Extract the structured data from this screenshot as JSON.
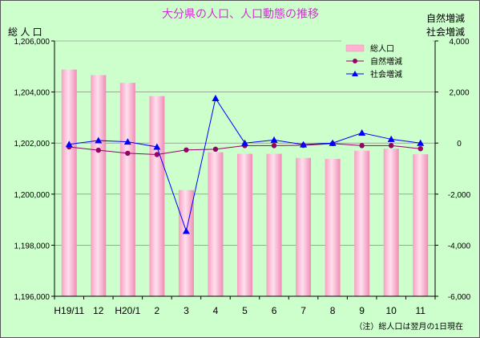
{
  "chart_data": {
    "type": "bar",
    "title": "大分県の人口、人口動態の推移",
    "ylabel_left": "総 人 口",
    "ylabel_right": "自然増減\n社会増減",
    "note": "（注）総人口は翌月の1日現在",
    "categories": [
      "H19/11",
      "12",
      "H20/1",
      "2",
      "3",
      "4",
      "5",
      "6",
      "7",
      "8",
      "9",
      "10",
      "11"
    ],
    "y_left": {
      "min": 1196000,
      "max": 1206000,
      "ticks": [
        1196000,
        1198000,
        1200000,
        1202000,
        1204000,
        1206000
      ],
      "tick_labels": [
        "1,196,000",
        "1,198,000",
        "1,200,000",
        "1,202,000",
        "1,204,000",
        "1,206,000"
      ]
    },
    "y_right": {
      "min": -6000,
      "max": 4000,
      "ticks": [
        -6000,
        -4000,
        -2000,
        0,
        2000,
        4000
      ],
      "tick_labels": [
        "-6,000",
        "-4,000",
        "-2,000",
        "0",
        "2,000",
        "4,000"
      ]
    },
    "grid": "horizontal",
    "legend_position": "top-right",
    "series": [
      {
        "name": "総人口",
        "type": "bar",
        "axis": "left",
        "color": "#ffb3d1",
        "values": [
          1204880,
          1204660,
          1204360,
          1203840,
          1200160,
          1201640,
          1201580,
          1201580,
          1201420,
          1201380,
          1201700,
          1201780,
          1201560
        ]
      },
      {
        "name": "自然増減",
        "type": "line",
        "axis": "right",
        "color": "#990066",
        "values": [
          -150,
          -280,
          -400,
          -450,
          -270,
          -240,
          -100,
          -100,
          -90,
          -20,
          -100,
          -100,
          -220
        ]
      },
      {
        "name": "社会増減",
        "type": "line",
        "axis": "right",
        "color": "#0000ff",
        "values": [
          -50,
          100,
          50,
          -150,
          -3450,
          1750,
          0,
          120,
          -60,
          0,
          400,
          150,
          0
        ]
      }
    ]
  }
}
